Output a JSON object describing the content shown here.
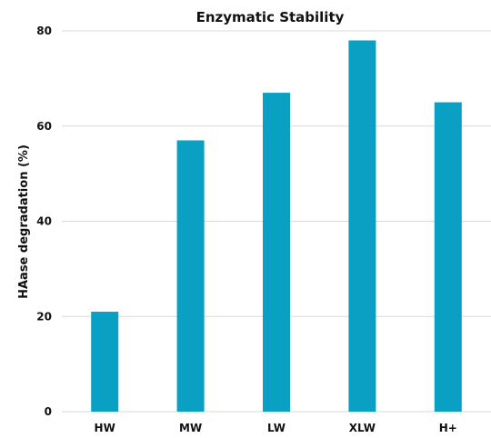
{
  "chart_data": {
    "type": "bar",
    "title": "Enzymatic Stability",
    "xlabel": "",
    "ylabel": "HAase degradation (%)",
    "categories": [
      "HW",
      "MW",
      "LW",
      "XLW",
      "H+"
    ],
    "values": [
      21,
      57,
      67,
      78,
      65
    ],
    "ylim": [
      0,
      80
    ],
    "yticks": [
      0,
      20,
      40,
      60,
      80
    ],
    "grid": true,
    "bar_color": "#0aa0c4"
  }
}
